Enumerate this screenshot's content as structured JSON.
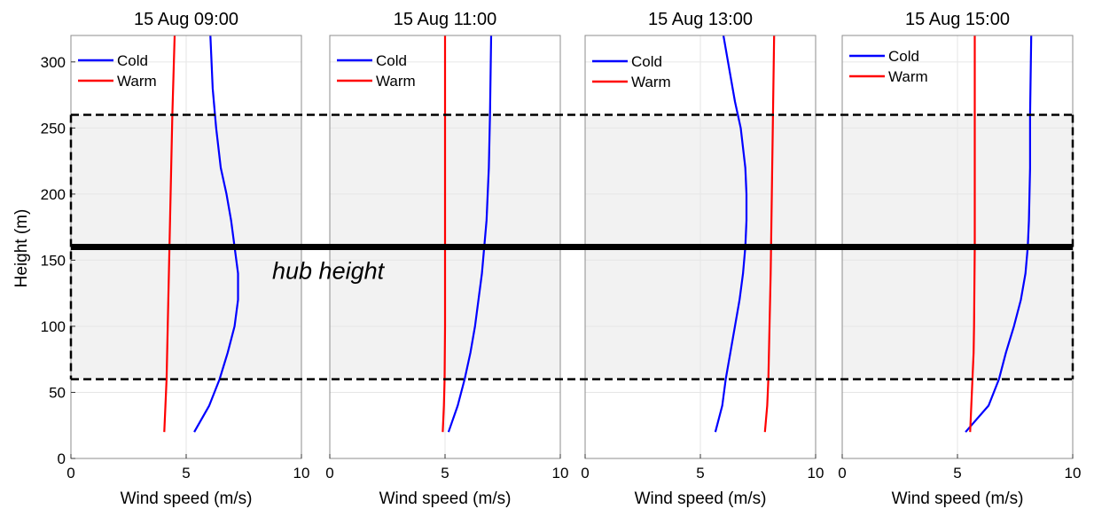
{
  "figure": {
    "ylabel": "Height (m)",
    "hub_label": "hub height"
  },
  "chart_data": [
    {
      "type": "line",
      "title": "15 Aug 09:00",
      "xlabel": "Wind speed (m/s)",
      "ylabel": "Height (m)",
      "xlim": [
        0,
        10
      ],
      "ylim": [
        0,
        320
      ],
      "xticks": [
        "0",
        "5",
        "10"
      ],
      "yticks": [
        "0",
        "50",
        "100",
        "150",
        "200",
        "250",
        "300"
      ],
      "grid": true,
      "legend": "top-left",
      "shaded_band": [
        60,
        260
      ],
      "hub_height": 160,
      "series": [
        {
          "name": "Cold",
          "color": "#0000ff",
          "x": [
            5.35,
            6.0,
            6.45,
            6.8,
            7.1,
            7.25,
            7.25,
            7.1,
            6.95,
            6.75,
            6.5,
            6.3,
            6.15,
            6.05
          ],
          "y": [
            20,
            40,
            60,
            80,
            100,
            120,
            140,
            160,
            180,
            200,
            220,
            250,
            280,
            320
          ]
        },
        {
          "name": "Warm",
          "color": "#ff0000",
          "x": [
            4.05,
            4.1,
            4.15,
            4.2,
            4.25,
            4.3,
            4.35,
            4.4,
            4.45,
            4.5
          ],
          "y": [
            20,
            40,
            60,
            100,
            140,
            180,
            220,
            260,
            290,
            320
          ]
        }
      ]
    },
    {
      "type": "line",
      "title": "15 Aug 11:00",
      "xlabel": "Wind speed (m/s)",
      "ylabel": "",
      "xlim": [
        0,
        10
      ],
      "ylim": [
        0,
        320
      ],
      "xticks": [
        "0",
        "5",
        "10"
      ],
      "yticks": [],
      "grid": true,
      "legend": "top-left",
      "shaded_band": [
        60,
        260
      ],
      "hub_height": 160,
      "series": [
        {
          "name": "Cold",
          "color": "#0000ff",
          "x": [
            5.15,
            5.55,
            5.85,
            6.1,
            6.3,
            6.45,
            6.6,
            6.7,
            6.8,
            6.9,
            6.95,
            7.0
          ],
          "y": [
            20,
            40,
            60,
            80,
            100,
            120,
            140,
            160,
            180,
            220,
            260,
            320
          ]
        },
        {
          "name": "Warm",
          "color": "#ff0000",
          "x": [
            4.9,
            4.95,
            4.98,
            5.0,
            5.0,
            5.0
          ],
          "y": [
            20,
            40,
            60,
            100,
            200,
            320
          ]
        }
      ]
    },
    {
      "type": "line",
      "title": "15 Aug 13:00",
      "xlabel": "Wind speed (m/s)",
      "ylabel": "",
      "xlim": [
        0,
        10
      ],
      "ylim": [
        0,
        320
      ],
      "xticks": [
        "0",
        "5",
        "10"
      ],
      "yticks": [],
      "grid": true,
      "legend": "top-left",
      "shaded_band": [
        60,
        260
      ],
      "hub_height": 160,
      "series": [
        {
          "name": "Cold",
          "color": "#0000ff",
          "x": [
            5.65,
            5.95,
            6.1,
            6.3,
            6.5,
            6.7,
            6.85,
            6.95,
            7.0,
            7.0,
            6.95,
            6.75,
            6.5,
            6.25,
            6.0
          ],
          "y": [
            20,
            40,
            60,
            80,
            100,
            120,
            140,
            160,
            180,
            200,
            220,
            250,
            270,
            295,
            320
          ]
        },
        {
          "name": "Warm",
          "color": "#ff0000",
          "x": [
            7.8,
            7.9,
            7.95,
            8.0,
            8.05,
            8.1,
            8.15,
            8.2
          ],
          "y": [
            20,
            40,
            60,
            100,
            140,
            200,
            260,
            320
          ]
        }
      ]
    },
    {
      "type": "line",
      "title": "15 Aug 15:00",
      "xlabel": "Wind speed (m/s)",
      "ylabel": "",
      "xlim": [
        0,
        10
      ],
      "ylim": [
        0,
        320
      ],
      "xticks": [
        "0",
        "5",
        "10"
      ],
      "yticks": [],
      "grid": true,
      "legend": "top-left",
      "shaded_band": [
        60,
        260
      ],
      "hub_height": 160,
      "series": [
        {
          "name": "Cold",
          "color": "#0000ff",
          "x": [
            5.35,
            6.35,
            6.8,
            7.1,
            7.45,
            7.75,
            7.95,
            8.05,
            8.1,
            8.15,
            8.15,
            8.2
          ],
          "y": [
            20,
            40,
            60,
            80,
            100,
            120,
            140,
            160,
            180,
            220,
            260,
            320
          ]
        },
        {
          "name": "Warm",
          "color": "#ff0000",
          "x": [
            5.55,
            5.6,
            5.65,
            5.7,
            5.72,
            5.75,
            5.75,
            5.75
          ],
          "y": [
            20,
            40,
            60,
            80,
            100,
            160,
            240,
            320
          ]
        }
      ]
    }
  ]
}
